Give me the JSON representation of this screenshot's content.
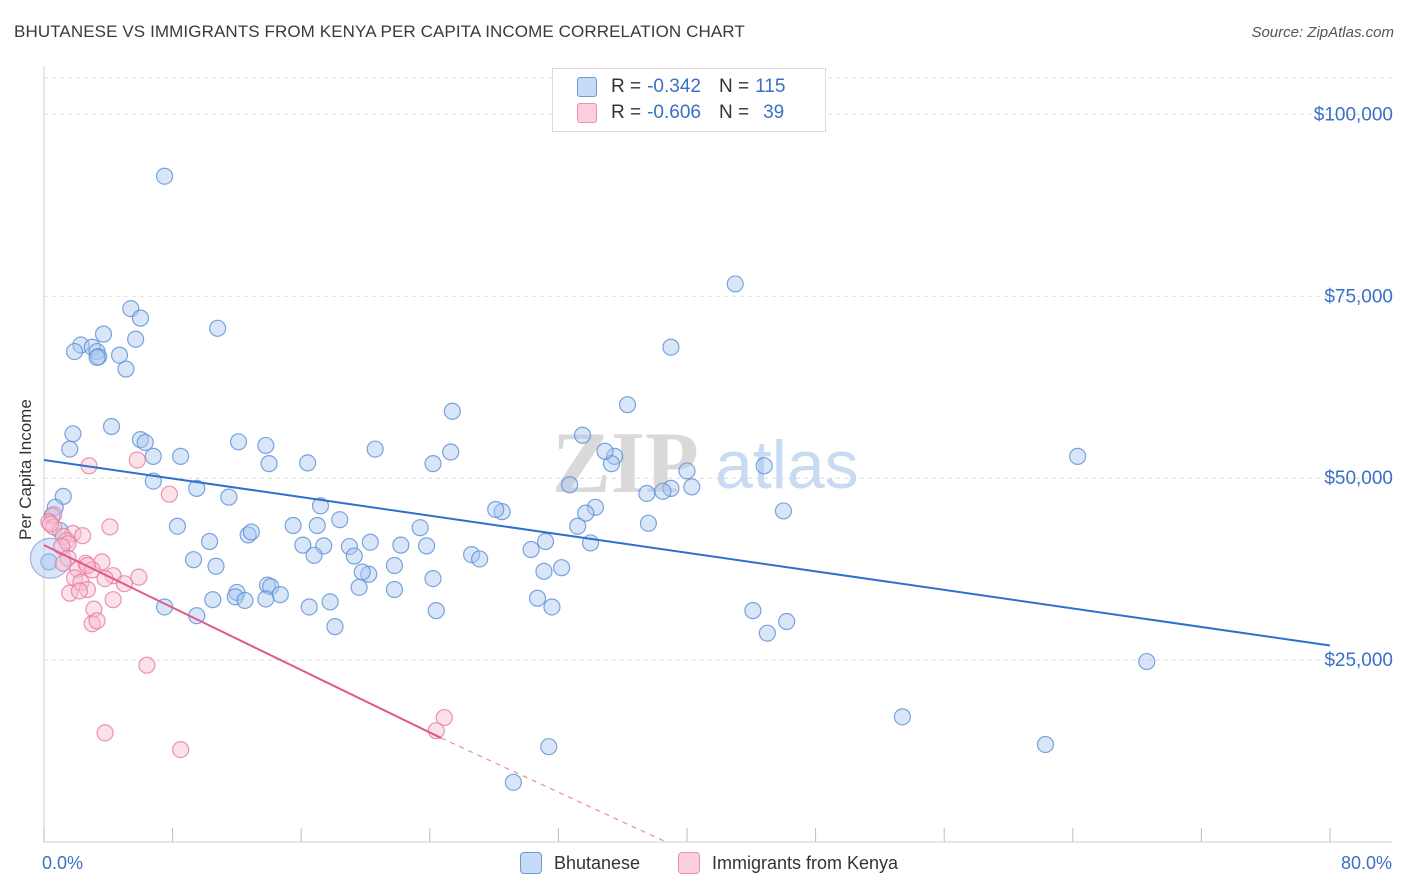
{
  "title": "BHUTANESE VS IMMIGRANTS FROM KENYA PER CAPITA INCOME CORRELATION CHART",
  "source": "Source: ZipAtlas.com",
  "watermark": {
    "zip": "ZIP",
    "atlas": "atlas"
  },
  "legend": {
    "r_label": "R =",
    "n_label": "N =",
    "rows": [
      {
        "r": "-0.342",
        "n": "115",
        "color": "#a9c8f0",
        "border": "#5b8fd6"
      },
      {
        "r": "-0.606",
        "n": "39",
        "color": "#f7bcd0",
        "border": "#e67a9e"
      }
    ]
  },
  "bottom_legend": [
    "Bhutanese",
    "Immigrants from Kenya"
  ],
  "x_axis": {
    "min_label": "0.0%",
    "max_label": "80.0%"
  },
  "chart_data": {
    "type": "scatter",
    "title": "BHUTANESE VS IMMIGRANTS FROM KENYA PER CAPITA INCOME CORRELATION CHART",
    "xlabel": "",
    "ylabel": "Per Capita Income",
    "xlim": [
      0,
      80
    ],
    "ylim": [
      0,
      105000
    ],
    "y_ticks": [
      25000,
      50000,
      75000,
      100000
    ],
    "y_tick_labels": [
      "$25,000",
      "$50,000",
      "$75,000",
      "$100,000"
    ],
    "grid": true,
    "legend_position": "top-center",
    "series": [
      {
        "name": "Bhutanese",
        "color": "#a9c8f0",
        "stroke": "#5b8fd6",
        "trend": {
          "x": [
            0,
            80
          ],
          "y": [
            52500,
            27000
          ],
          "color": "#2f6fd0"
        },
        "points": [
          [
            7.5,
            91500
          ],
          [
            43,
            76700
          ],
          [
            5.4,
            73300
          ],
          [
            10.8,
            70600
          ],
          [
            3.7,
            69800
          ],
          [
            5.7,
            69100
          ],
          [
            2.3,
            68300
          ],
          [
            3.0,
            68000
          ],
          [
            1.9,
            67400
          ],
          [
            3.3,
            67400
          ],
          [
            4.7,
            66900
          ],
          [
            3.4,
            66700
          ],
          [
            5.1,
            65000
          ],
          [
            39,
            68000
          ],
          [
            36.3,
            60100
          ],
          [
            25.4,
            59200
          ],
          [
            4.2,
            57100
          ],
          [
            1.8,
            56100
          ],
          [
            33.5,
            55900
          ],
          [
            6.0,
            55300
          ],
          [
            12.1,
            55000
          ],
          [
            6.3,
            54900
          ],
          [
            13.8,
            54500
          ],
          [
            20.6,
            54000
          ],
          [
            25.3,
            53600
          ],
          [
            1.6,
            54000
          ],
          [
            35.5,
            53000
          ],
          [
            8.5,
            53000
          ],
          [
            6.8,
            53000
          ],
          [
            16.4,
            52100
          ],
          [
            14.0,
            52000
          ],
          [
            24.2,
            52000
          ],
          [
            44.8,
            51700
          ],
          [
            35.3,
            52000
          ],
          [
            34.9,
            53700
          ],
          [
            64.3,
            53000
          ],
          [
            6.8,
            49600
          ],
          [
            40,
            51000
          ],
          [
            32.7,
            49100
          ],
          [
            39.0,
            48600
          ],
          [
            40.3,
            48800
          ],
          [
            38.5,
            48200
          ],
          [
            9.5,
            48600
          ],
          [
            11.5,
            47400
          ],
          [
            37.5,
            47900
          ],
          [
            17.2,
            46200
          ],
          [
            28.5,
            45400
          ],
          [
            28.1,
            45700
          ],
          [
            34.3,
            46000
          ],
          [
            33.7,
            45200
          ],
          [
            18.4,
            44300
          ],
          [
            15.5,
            43500
          ],
          [
            8.3,
            43400
          ],
          [
            17.0,
            43500
          ],
          [
            23.4,
            43200
          ],
          [
            37.6,
            43800
          ],
          [
            33.2,
            43400
          ],
          [
            12.7,
            42200
          ],
          [
            12.9,
            42600
          ],
          [
            10.3,
            41300
          ],
          [
            20.3,
            41200
          ],
          [
            16.1,
            40800
          ],
          [
            17.4,
            40700
          ],
          [
            22.2,
            40800
          ],
          [
            19.0,
            40600
          ],
          [
            23.8,
            40700
          ],
          [
            31.2,
            41300
          ],
          [
            34.0,
            41100
          ],
          [
            30.3,
            40200
          ],
          [
            26.6,
            39500
          ],
          [
            27.1,
            38900
          ],
          [
            19.3,
            39300
          ],
          [
            16.8,
            39400
          ],
          [
            9.3,
            38800
          ],
          [
            10.7,
            37900
          ],
          [
            21.8,
            38000
          ],
          [
            32.2,
            37700
          ],
          [
            31.1,
            37200
          ],
          [
            20.2,
            36800
          ],
          [
            19.8,
            37100
          ],
          [
            24.2,
            36200
          ],
          [
            13.9,
            35300
          ],
          [
            14.1,
            35100
          ],
          [
            19.6,
            35000
          ],
          [
            21.8,
            34700
          ],
          [
            12.0,
            34300
          ],
          [
            14.7,
            34000
          ],
          [
            11.9,
            33700
          ],
          [
            12.5,
            33200
          ],
          [
            13.8,
            33400
          ],
          [
            10.5,
            33300
          ],
          [
            30.7,
            33500
          ],
          [
            17.8,
            33000
          ],
          [
            16.5,
            32300
          ],
          [
            7.5,
            32300
          ],
          [
            31.6,
            32300
          ],
          [
            24.4,
            31800
          ],
          [
            9.5,
            31100
          ],
          [
            44.1,
            31800
          ],
          [
            46.2,
            30300
          ],
          [
            45.0,
            28700
          ],
          [
            18.1,
            29600
          ],
          [
            68.6,
            24800
          ],
          [
            53.4,
            17200
          ],
          [
            62.3,
            13400
          ],
          [
            31.4,
            13100
          ],
          [
            29.2,
            8200
          ],
          [
            1.2,
            47500
          ],
          [
            0.7,
            46000
          ],
          [
            0.5,
            44800
          ],
          [
            1.0,
            42800
          ],
          [
            0.3,
            38500
          ],
          [
            3.3,
            66600
          ],
          [
            6.0,
            72000
          ],
          [
            46.0,
            45500
          ]
        ]
      },
      {
        "name": "Immigrants from Kenya",
        "color": "#f7bcd0",
        "stroke": "#e67a9e",
        "trend": {
          "x": [
            0,
            24.7
          ],
          "y": [
            40800,
            14300
          ],
          "dash_to": [
            38.7,
            0
          ],
          "color": "#e2588b"
        },
        "points": [
          [
            5.8,
            52500
          ],
          [
            2.8,
            51700
          ],
          [
            7.8,
            47800
          ],
          [
            0.6,
            45000
          ],
          [
            0.3,
            44000
          ],
          [
            0.6,
            43300
          ],
          [
            4.1,
            43300
          ],
          [
            1.8,
            42400
          ],
          [
            2.4,
            42100
          ],
          [
            1.2,
            42000
          ],
          [
            1.4,
            41400
          ],
          [
            1.5,
            41000
          ],
          [
            1.1,
            40600
          ],
          [
            1.5,
            39000
          ],
          [
            1.2,
            38300
          ],
          [
            3.6,
            38500
          ],
          [
            2.6,
            38300
          ],
          [
            2.1,
            37500
          ],
          [
            3.0,
            37400
          ],
          [
            4.3,
            36600
          ],
          [
            1.9,
            36300
          ],
          [
            5.9,
            36400
          ],
          [
            3.8,
            36200
          ],
          [
            2.3,
            35700
          ],
          [
            5.0,
            35500
          ],
          [
            2.7,
            34700
          ],
          [
            1.6,
            34200
          ],
          [
            2.2,
            34500
          ],
          [
            4.3,
            33300
          ],
          [
            3.1,
            32000
          ],
          [
            3.0,
            30000
          ],
          [
            3.3,
            30400
          ],
          [
            6.4,
            24300
          ],
          [
            24.9,
            17100
          ],
          [
            24.4,
            15300
          ],
          [
            3.8,
            15000
          ],
          [
            8.5,
            12700
          ],
          [
            0.4,
            43700
          ],
          [
            2.7,
            38000
          ]
        ]
      }
    ]
  }
}
